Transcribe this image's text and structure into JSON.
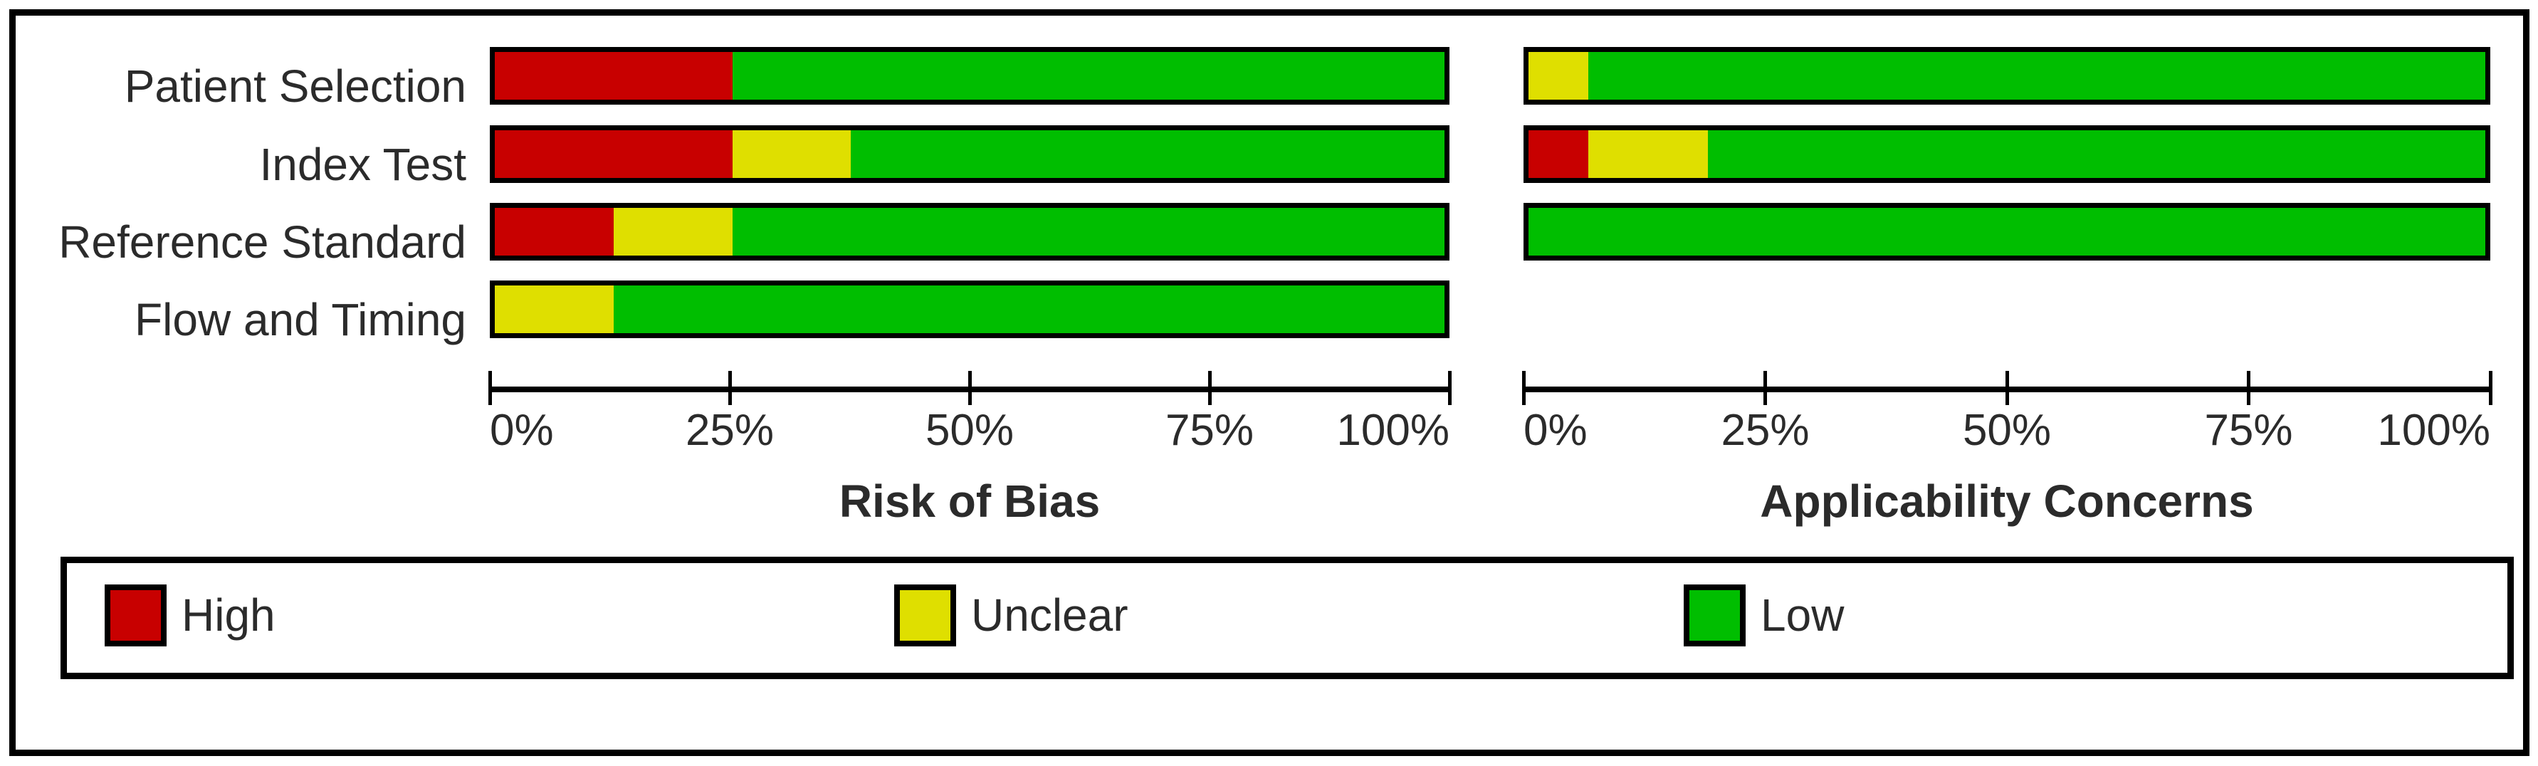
{
  "figure": {
    "description": "QUADAS-2 methodological quality summary bar graph",
    "row_labels": [
      "Patient Selection",
      "Index Test",
      "Reference Standard",
      "Flow and Timing"
    ]
  },
  "colors": {
    "high": "#c80000",
    "unclear": "#dfdf00",
    "low": "#00be00",
    "frame": "#000000",
    "text": "#2b2b2b",
    "background": "#ffffff"
  },
  "chart_data": [
    {
      "id": "risk-of-bias",
      "type": "bar",
      "variant": "stacked-horizontal",
      "title": "Risk of Bias",
      "categories": [
        "Patient Selection",
        "Index Test",
        "Reference Standard",
        "Flow and Timing"
      ],
      "series": [
        {
          "name": "High",
          "color": "#c80000",
          "values": [
            25,
            25,
            12.5,
            0
          ]
        },
        {
          "name": "Unclear",
          "color": "#dfdf00",
          "values": [
            0,
            12.5,
            12.5,
            12.5
          ]
        },
        {
          "name": "Low",
          "color": "#00be00",
          "values": [
            75,
            62.5,
            75,
            87.5
          ]
        }
      ],
      "x_ticks": [
        "0%",
        "25%",
        "50%",
        "75%",
        "100%"
      ],
      "xlim": [
        0,
        100
      ],
      "grid": false,
      "legend_position": "bottom-shared"
    },
    {
      "id": "applicability-concerns",
      "type": "bar",
      "variant": "stacked-horizontal",
      "title": "Applicability Concerns",
      "categories": [
        "Patient Selection",
        "Index Test",
        "Reference Standard",
        "Flow and Timing"
      ],
      "series": [
        {
          "name": "High",
          "color": "#c80000",
          "values": [
            0,
            6.25,
            0,
            null
          ]
        },
        {
          "name": "Unclear",
          "color": "#dfdf00",
          "values": [
            6.25,
            12.5,
            0,
            null
          ]
        },
        {
          "name": "Low",
          "color": "#00be00",
          "values": [
            93.75,
            81.25,
            100,
            null
          ]
        }
      ],
      "x_ticks": [
        "0%",
        "25%",
        "50%",
        "75%",
        "100%"
      ],
      "xlim": [
        0,
        100
      ],
      "grid": false,
      "legend_position": "bottom-shared"
    }
  ],
  "legend": {
    "items": [
      {
        "label": "High",
        "color": "#c80000"
      },
      {
        "label": "Unclear",
        "color": "#dfdf00"
      },
      {
        "label": "Low",
        "color": "#00be00"
      }
    ]
  }
}
